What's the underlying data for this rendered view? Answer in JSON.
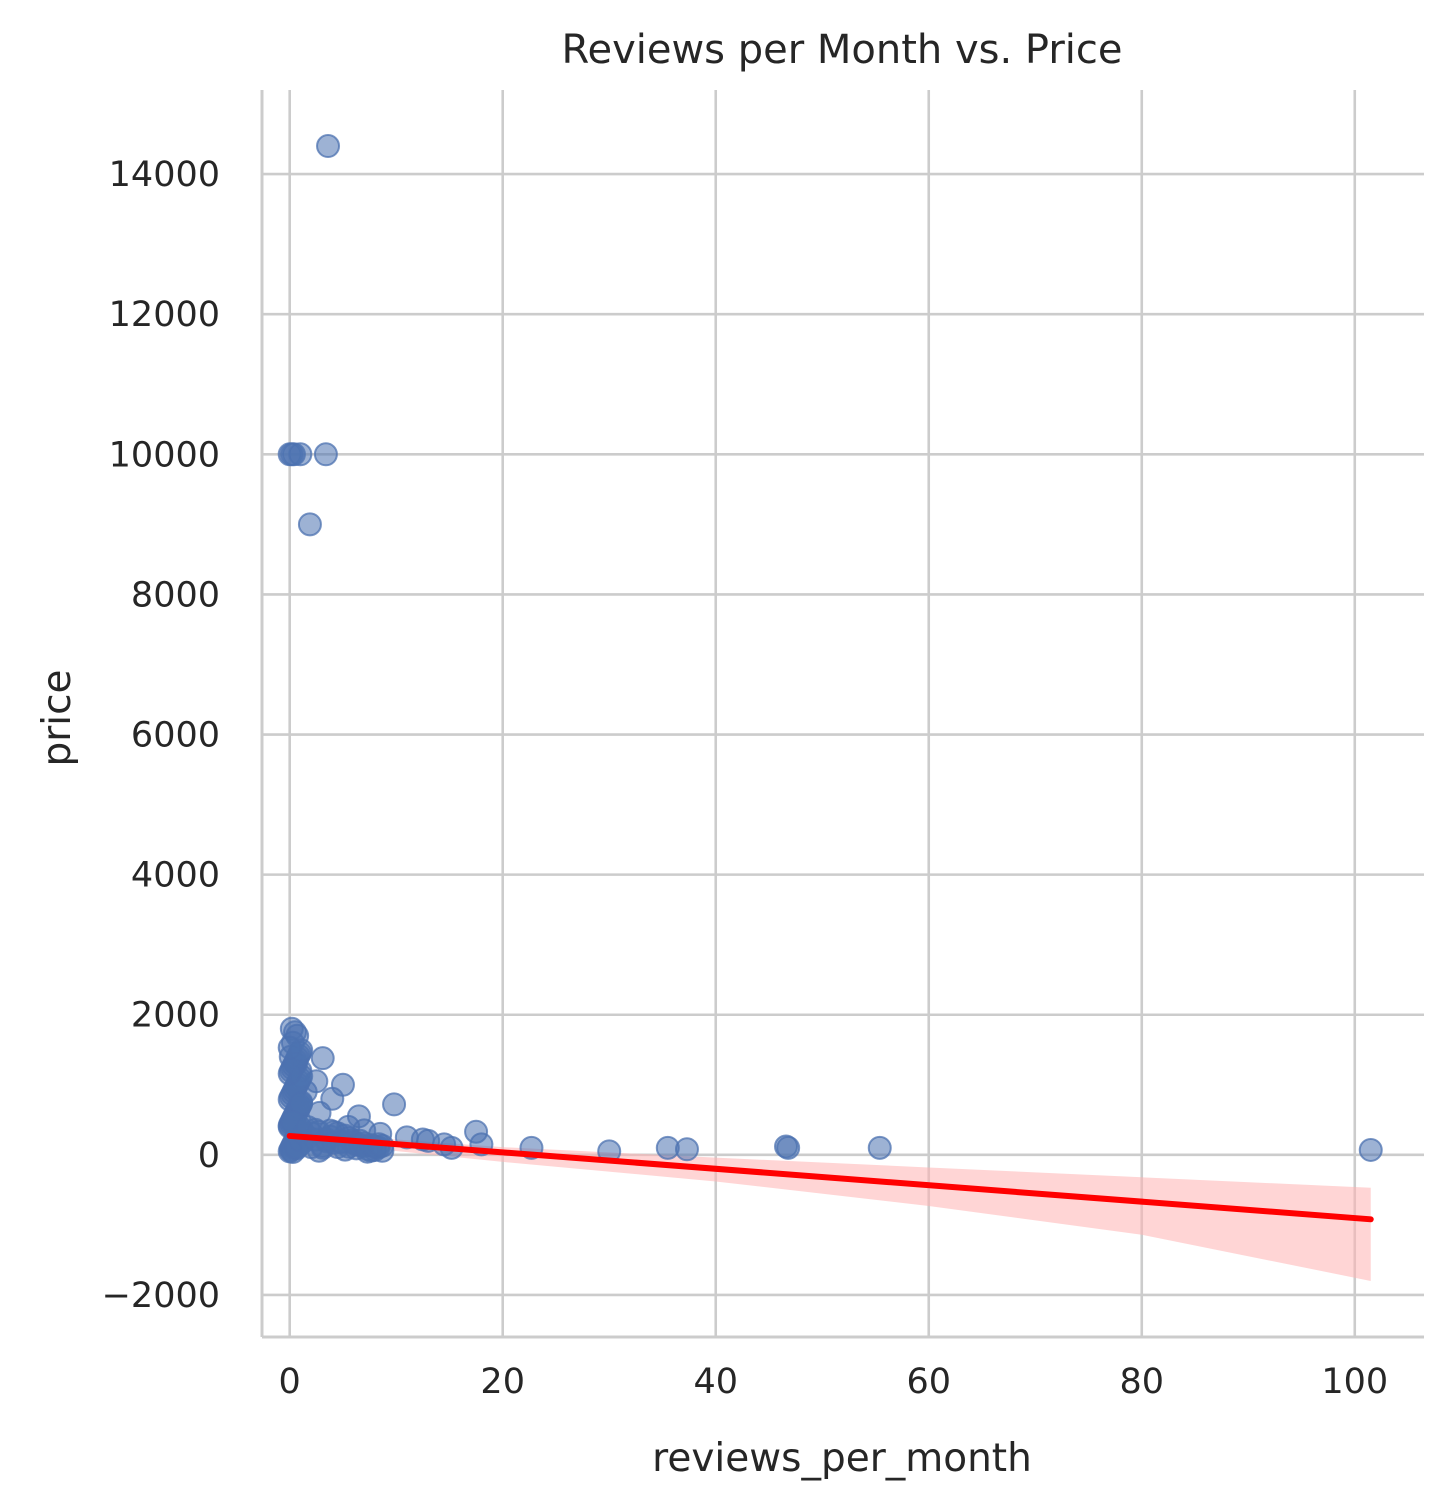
{
  "chart_data": {
    "type": "scatter",
    "title": "Reviews per Month vs. Price",
    "xlabel": "reviews_per_month",
    "ylabel": "price",
    "xlim": [
      -2.6,
      106.5
    ],
    "ylim": [
      -2600,
      15200
    ],
    "x_ticks": [
      0,
      20,
      40,
      60,
      80,
      100
    ],
    "y_ticks": [
      -2000,
      0,
      2000,
      4000,
      6000,
      8000,
      10000,
      12000,
      14000
    ],
    "x_tick_labels": [
      "0",
      "20",
      "40",
      "60",
      "80",
      "100"
    ],
    "y_tick_labels": [
      "−2000",
      "0",
      "2000",
      "4000",
      "6000",
      "8000",
      "10000",
      "12000",
      "14000"
    ],
    "grid": true,
    "legend": "none",
    "colors": {
      "points": "#4c72b0",
      "regression_line": "#ff0000",
      "confidence_band": "#ffb3b3",
      "grid": "#cccccc",
      "text": "#262626"
    },
    "series": [
      {
        "kind": "points",
        "x": [
          3.6,
          0.0,
          0.2,
          0.4,
          1.0,
          3.4,
          1.9,
          0.2,
          0.5,
          0.7,
          0.3,
          0.1,
          0.6,
          1.0,
          3.1,
          5.0,
          2.5,
          4.0,
          6.5,
          9.8,
          1.5,
          2.8,
          5.5,
          7.0,
          8.5,
          11.0,
          12.5,
          13.0,
          14.5,
          15.2,
          17.5,
          18.0,
          22.7,
          30.0,
          35.5,
          37.3,
          46.6,
          46.8,
          55.4,
          101.5
        ],
        "y": [
          14400,
          10000,
          10000,
          10000,
          10000,
          10000,
          9000,
          1800,
          1750,
          1700,
          1600,
          1400,
          1300,
          1200,
          1380,
          1000,
          1050,
          800,
          550,
          720,
          900,
          600,
          400,
          350,
          300,
          250,
          220,
          200,
          150,
          100,
          330,
          150,
          100,
          50,
          100,
          80,
          120,
          100,
          100,
          70
        ]
      },
      {
        "kind": "regression",
        "x": [
          0,
          101.5
        ],
        "y": [
          270,
          -920
        ]
      },
      {
        "kind": "confidence_band",
        "x": [
          0,
          20,
          40,
          60,
          80,
          101.5
        ],
        "y_upper": [
          330,
          110,
          -40,
          -180,
          -320,
          -470
        ],
        "y_lower": [
          210,
          -100,
          -380,
          -730,
          -1140,
          -1800
        ]
      }
    ]
  }
}
